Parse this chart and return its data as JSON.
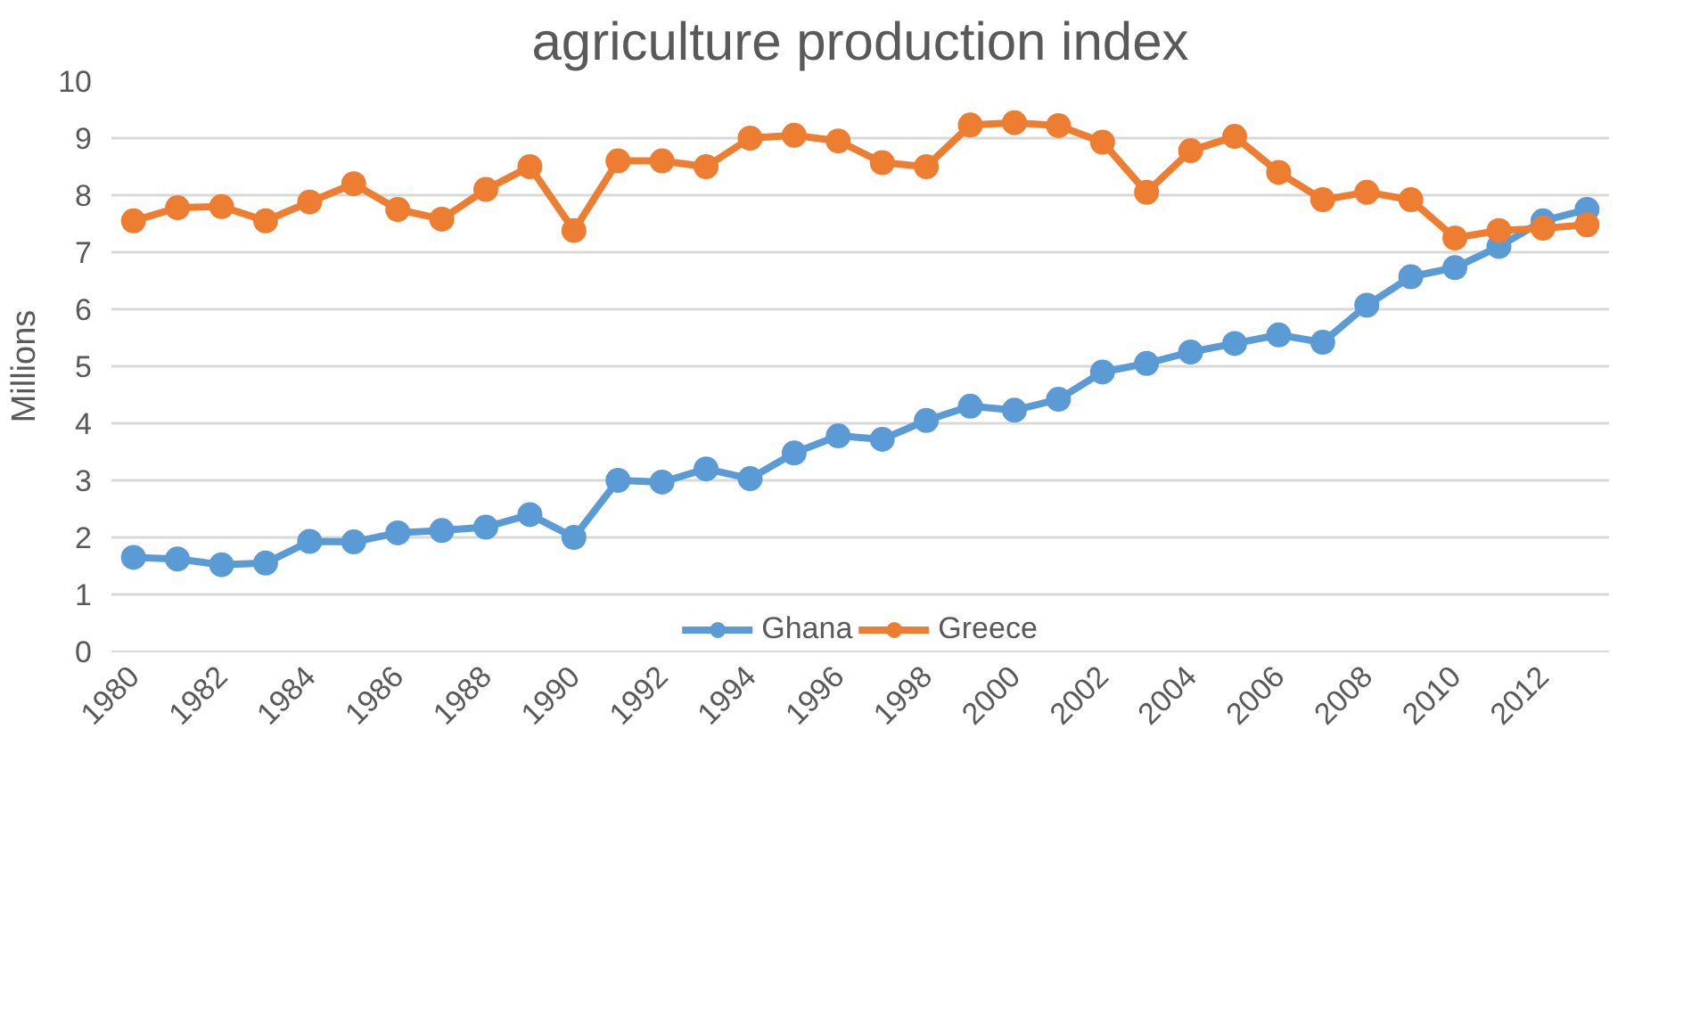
{
  "chart_data": {
    "type": "line",
    "title": "agriculture production index",
    "ylabel": "Millions",
    "x": [
      1980,
      1981,
      1982,
      1983,
      1984,
      1985,
      1986,
      1987,
      1988,
      1989,
      1990,
      1991,
      1992,
      1993,
      1994,
      1995,
      1996,
      1997,
      1998,
      1999,
      2000,
      2001,
      2002,
      2003,
      2004,
      2005,
      2006,
      2007,
      2008,
      2009,
      2010,
      2011,
      2012,
      2013
    ],
    "series": [
      {
        "name": "Ghana",
        "color": "#5b9bd5",
        "values": [
          1.65,
          1.62,
          1.52,
          1.55,
          1.93,
          1.92,
          2.08,
          2.12,
          2.18,
          2.4,
          2.0,
          3.0,
          2.97,
          3.2,
          3.03,
          3.48,
          3.78,
          3.72,
          4.05,
          4.3,
          4.23,
          4.42,
          4.9,
          5.05,
          5.25,
          5.4,
          5.55,
          5.42,
          6.07,
          6.57,
          6.73,
          7.1,
          7.55,
          7.75
        ]
      },
      {
        "name": "Greece",
        "color": "#ed7d31",
        "values": [
          7.55,
          7.78,
          7.8,
          7.55,
          7.88,
          8.2,
          7.75,
          7.58,
          8.1,
          8.5,
          7.38,
          8.6,
          8.6,
          8.5,
          9.0,
          9.05,
          8.95,
          8.57,
          8.5,
          9.23,
          9.27,
          9.22,
          8.93,
          8.05,
          8.78,
          9.03,
          8.4,
          7.92,
          8.05,
          7.92,
          7.25,
          7.38,
          7.42,
          7.48
        ]
      }
    ],
    "xlim": [
      1979.5,
      2013.5
    ],
    "xticks": [
      1980,
      1982,
      1984,
      1986,
      1988,
      1990,
      1992,
      1994,
      1996,
      1998,
      2000,
      2002,
      2004,
      2006,
      2008,
      2010,
      2012
    ],
    "ylim": [
      0,
      10
    ],
    "yticks": [
      0,
      1,
      2,
      3,
      4,
      5,
      6,
      7,
      8,
      9,
      10
    ],
    "grid": "y",
    "legend": "bottom",
    "marker": "circle",
    "line_style": "solid"
  }
}
